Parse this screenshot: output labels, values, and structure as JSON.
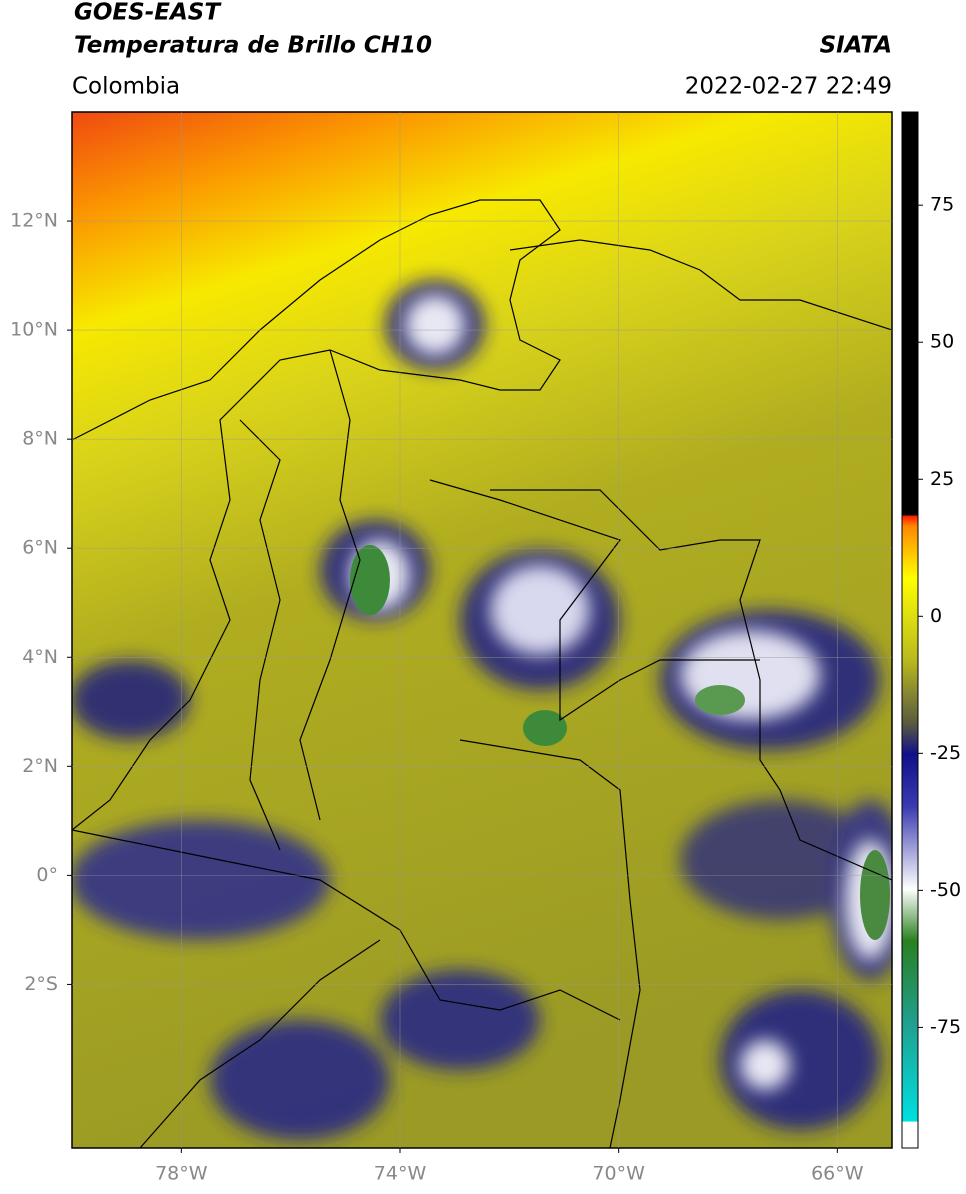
{
  "header": {
    "satellite": "GOES-EAST",
    "product": "Temperatura de Brillo CH10",
    "agency": "SIATA",
    "region": "Colombia",
    "timestamp": "2022-02-27 22:49"
  },
  "map": {
    "xlim": [
      -80,
      -65
    ],
    "ylim": [
      -5,
      14
    ],
    "xticks": [
      {
        "value": -78,
        "label": "78°W"
      },
      {
        "value": -74,
        "label": "74°W"
      },
      {
        "value": -70,
        "label": "70°W"
      },
      {
        "value": -66,
        "label": "66°W"
      }
    ],
    "yticks": [
      {
        "value": 12,
        "label": "12°N"
      },
      {
        "value": 10,
        "label": "10°N"
      },
      {
        "value": 8,
        "label": "8°N"
      },
      {
        "value": 6,
        "label": "6°N"
      },
      {
        "value": 4,
        "label": "4°N"
      },
      {
        "value": 2,
        "label": "2°N"
      },
      {
        "value": 0,
        "label": "0°"
      },
      {
        "value": -2,
        "label": "2°S"
      }
    ],
    "grid": true
  },
  "colorbar": {
    "lim": [
      -97,
      92
    ],
    "ticks": [
      75,
      50,
      25,
      0,
      -25,
      -50,
      -75
    ]
  }
}
